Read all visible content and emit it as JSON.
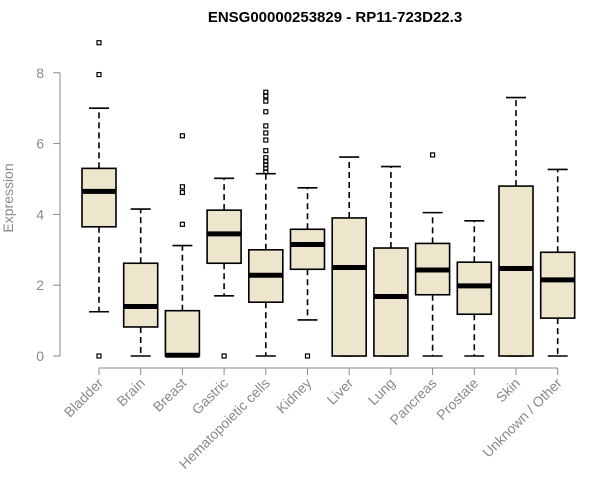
{
  "chart_data": {
    "type": "boxplot",
    "title": "ENSG00000253829 - RP11-723D22.3",
    "xlabel": "",
    "ylabel": "Expression",
    "ylim": [
      0,
      9
    ],
    "yticks": [
      0,
      2,
      4,
      6,
      8
    ],
    "categories": [
      "Bladder",
      "Brain",
      "Breast",
      "Gastric",
      "Hematopoietic cells",
      "Kidney",
      "Liver",
      "Lung",
      "Pancreas",
      "Prostate",
      "Skin",
      "Unknown / Other"
    ],
    "boxes": [
      {
        "name": "Bladder",
        "min": 1.25,
        "q1": 3.65,
        "median": 4.65,
        "q3": 5.3,
        "max": 7.0,
        "outliers": [
          0,
          7.95,
          8.85
        ]
      },
      {
        "name": "Brain",
        "min": 0,
        "q1": 0.82,
        "median": 1.4,
        "q3": 2.62,
        "max": 4.15,
        "outliers": []
      },
      {
        "name": "Breast",
        "min": 0,
        "q1": 0,
        "median": 0.02,
        "q3": 1.28,
        "max": 3.12,
        "outliers": [
          3.72,
          4.62,
          4.78,
          6.22
        ]
      },
      {
        "name": "Gastric",
        "min": 1.7,
        "q1": 2.62,
        "median": 3.45,
        "q3": 4.12,
        "max": 5.02,
        "outliers": [
          0
        ]
      },
      {
        "name": "Hematopoietic cells",
        "min": 0,
        "q1": 1.52,
        "median": 2.28,
        "q3": 3.0,
        "max": 5.15,
        "outliers": [
          5.2,
          5.3,
          5.4,
          5.5,
          5.6,
          5.8,
          6.1,
          6.3,
          6.5,
          6.9,
          7.2,
          7.35,
          7.45
        ]
      },
      {
        "name": "Kidney",
        "min": 1.02,
        "q1": 2.45,
        "median": 3.15,
        "q3": 3.58,
        "max": 4.75,
        "outliers": [
          0
        ]
      },
      {
        "name": "Liver",
        "min": 0,
        "q1": 0,
        "median": 2.5,
        "q3": 3.9,
        "max": 5.62,
        "outliers": []
      },
      {
        "name": "Lung",
        "min": 0,
        "q1": 0,
        "median": 1.68,
        "q3": 3.05,
        "max": 5.35,
        "outliers": []
      },
      {
        "name": "Pancreas",
        "min": 0,
        "q1": 1.73,
        "median": 2.43,
        "q3": 3.18,
        "max": 4.05,
        "outliers": [
          5.68
        ]
      },
      {
        "name": "Prostate",
        "min": 0,
        "q1": 1.18,
        "median": 1.98,
        "q3": 2.65,
        "max": 3.82,
        "outliers": []
      },
      {
        "name": "Skin",
        "min": 0,
        "q1": 0,
        "median": 2.47,
        "q3": 4.8,
        "max": 7.3,
        "outliers": []
      },
      {
        "name": "Unknown / Other",
        "min": 0,
        "q1": 1.07,
        "median": 2.15,
        "q3": 2.93,
        "max": 5.27,
        "outliers": []
      }
    ]
  }
}
